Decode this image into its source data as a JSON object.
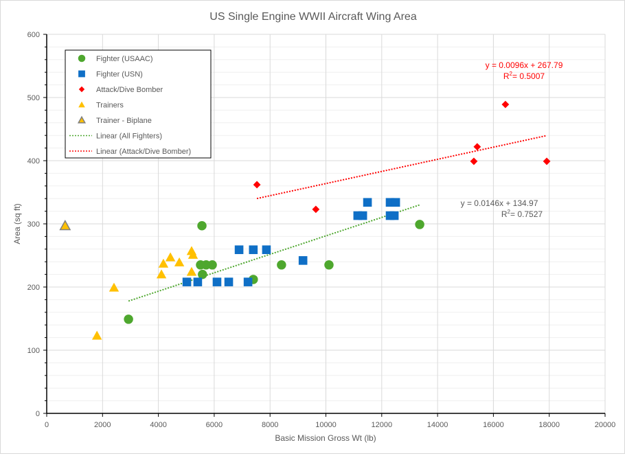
{
  "chart_data": {
    "type": "scatter",
    "title": "US Single Engine WWII Aircraft Wing Area",
    "xlabel": "Basic Mission Gross Wt (lb)",
    "ylabel": "Area (sq ft)",
    "xlim": [
      0,
      20000
    ],
    "ylim": [
      0,
      600
    ],
    "xticks": [
      0,
      2000,
      4000,
      6000,
      8000,
      10000,
      12000,
      14000,
      16000,
      18000,
      20000
    ],
    "yticks": [
      0,
      100,
      200,
      300,
      400,
      500,
      600
    ],
    "grid": {
      "major": true,
      "minor_y": true
    },
    "legend_position": "top-left",
    "series": [
      {
        "name": "Fighter (USAAC)",
        "marker": "circle",
        "color": "#4ea72e",
        "points": [
          [
            2930,
            149
          ],
          [
            5560,
            297
          ],
          [
            5510,
            235
          ],
          [
            5710,
            235
          ],
          [
            5930,
            235
          ],
          [
            5580,
            220
          ],
          [
            7400,
            212
          ],
          [
            8410,
            235
          ],
          [
            10110,
            235
          ],
          [
            13360,
            299
          ]
        ]
      },
      {
        "name": "Fighter (USN)",
        "marker": "square",
        "color": "#0f6fc6",
        "points": [
          [
            5020,
            208
          ],
          [
            5410,
            208
          ],
          [
            6100,
            208
          ],
          [
            6520,
            208
          ],
          [
            7210,
            208
          ],
          [
            6890,
            259
          ],
          [
            7400,
            259
          ],
          [
            7870,
            259
          ],
          [
            9180,
            242
          ],
          [
            11140,
            313
          ],
          [
            11320,
            313
          ],
          [
            11490,
            334
          ],
          [
            12300,
            334
          ],
          [
            12500,
            334
          ],
          [
            12300,
            313
          ],
          [
            12450,
            313
          ]
        ]
      },
      {
        "name": "Attack/Dive Bomber",
        "marker": "diamond",
        "color": "#ff0000",
        "points": [
          [
            7530,
            362
          ],
          [
            9640,
            323
          ],
          [
            15300,
            399
          ],
          [
            15420,
            422
          ],
          [
            16430,
            489
          ],
          [
            17910,
            399
          ]
        ]
      },
      {
        "name": "Trainers",
        "marker": "triangle",
        "color": "#ffc000",
        "points": [
          [
            1800,
            123
          ],
          [
            2410,
            199
          ],
          [
            4110,
            220
          ],
          [
            4180,
            237
          ],
          [
            4430,
            247
          ],
          [
            4750,
            239
          ],
          [
            5190,
            257
          ],
          [
            5240,
            251
          ],
          [
            5190,
            224
          ]
        ]
      },
      {
        "name": "Trainer - Biplane",
        "marker": "triangle-outlined",
        "color": "#ffc000",
        "outline": "#7f7f7f",
        "points": [
          [
            660,
            297
          ]
        ]
      }
    ],
    "trendlines": [
      {
        "name": "Linear (All Fighters)",
        "color": "#4ea72e",
        "slope": 0.0146,
        "intercept": 134.97,
        "x_range": [
          2930,
          13360
        ],
        "equation": "y = 0.0146x + 134.97",
        "r2_label": "R",
        "r2_value": " = 0.7527"
      },
      {
        "name": "Linear (Attack/Dive Bomber)",
        "color": "#ff0000",
        "slope": 0.0096,
        "intercept": 267.79,
        "x_range": [
          7530,
          17910
        ],
        "equation": "y = 0.0096x + 267.79",
        "r2_label": "R",
        "r2_value": " = 0.5007"
      }
    ]
  }
}
